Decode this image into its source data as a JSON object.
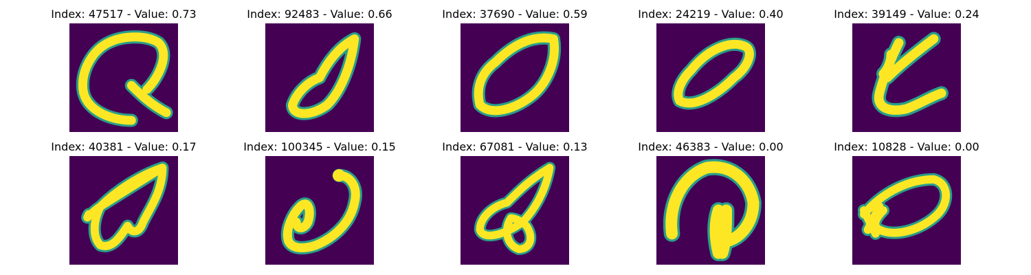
{
  "figure": {
    "colors": {
      "background": "#440154",
      "stroke_outer": "#2a9e8a",
      "stroke_inner": "#fde725"
    },
    "panels": [
      {
        "title": "Index: 47517 - Value: 0.73",
        "index": 47517,
        "value": 0.73
      },
      {
        "title": "Index: 92483 - Value: 0.66",
        "index": 92483,
        "value": 0.66
      },
      {
        "title": "Index: 37690 - Value: 0.59",
        "index": 37690,
        "value": 0.59
      },
      {
        "title": "Index: 24219 - Value: 0.40",
        "index": 24219,
        "value": 0.4
      },
      {
        "title": "Index: 39149 - Value: 0.24",
        "index": 39149,
        "value": 0.24
      },
      {
        "title": "Index: 40381 - Value: 0.17",
        "index": 40381,
        "value": 0.17
      },
      {
        "title": "Index: 100345 - Value: 0.15",
        "index": 100345,
        "value": 0.15
      },
      {
        "title": "Index: 67081 - Value: 0.13",
        "index": 67081,
        "value": 0.13
      },
      {
        "title": "Index: 46383 - Value: 0.00",
        "index": 46383,
        "value": 0.0
      },
      {
        "title": "Index: 10828 - Value: 0.00",
        "index": 10828,
        "value": 0.0
      }
    ]
  }
}
